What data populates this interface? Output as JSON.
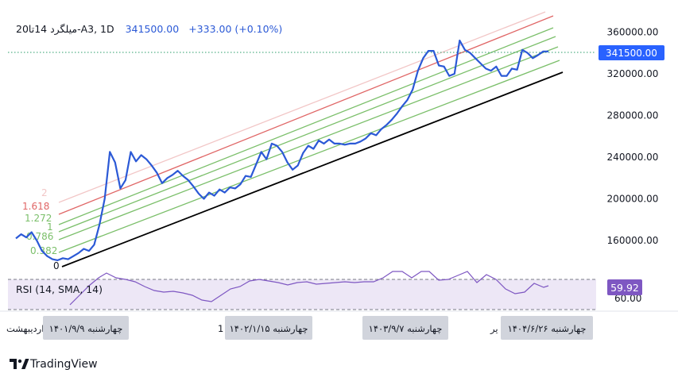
{
  "header": {
    "symbol": "20میلگرد 14تا-A3, 1D",
    "price": "341500.00",
    "change": "+333.00 (+0.10%)"
  },
  "colors": {
    "price_line": "#2b59d6",
    "channel_base": "#000000",
    "fib_green": "#7bbf6a",
    "fib_red": "#e06666",
    "fib_faint": "#f2c6c6",
    "rsi_line": "#7e57c2",
    "rsi_band": "#ede7f6",
    "last_price_bg": "#2962ff",
    "rsi_badge_bg": "#7e57c2",
    "axis_text": "#131722",
    "date_box_bg": "#d1d4dc"
  },
  "fib_levels": [
    "0",
    "0.382",
    "0.786",
    "1",
    "1.272",
    "1.618",
    "2"
  ],
  "rsi": {
    "label": "RSI (14, SMA, 14)",
    "value": "59.92",
    "hidden_tick": "60.00"
  },
  "x_axis": {
    "left_cut": "اردیبهشت",
    "marker_1": "چهارشنبه ۱۴۰۱/۹/۹",
    "stray_1": "1",
    "marker_2": "چهارشنبه ۱۴۰۲/۱/۱۵",
    "marker_3": "چهارشنبه ۱۴۰۳/۹/۷",
    "stray_2": "یر",
    "marker_4": "چهارشنبه ۱۴۰۴/۶/۲۶"
  },
  "brand": {
    "name": "TradingView",
    "logo": "tradingview-logo"
  },
  "chart_data": {
    "type": "line",
    "title": "",
    "ylim": [
      125000,
      375000
    ],
    "y_ticks": [
      160000,
      200000,
      240000,
      280000,
      320000,
      360000
    ],
    "y_tick_labels": [
      "160000.00",
      "200000.00",
      "240000.00",
      "280000.00",
      "320000.00",
      "360000.00"
    ],
    "x_start": "1401-01",
    "x_end": "1404-07",
    "legend": "none",
    "grid": false,
    "series": [
      {
        "points": [
          [
            "1401-01",
            162000
          ],
          [
            "1401-01",
            166000
          ],
          [
            "1401-01",
            163000
          ],
          [
            "1401-02",
            168000
          ],
          [
            "1401-02",
            160000
          ],
          [
            "1401-02",
            150000
          ],
          [
            "1401-02",
            145000
          ],
          [
            "1401-03",
            142000
          ],
          [
            "1401-03",
            141000
          ],
          [
            "1401-03",
            143000
          ],
          [
            "1401-03",
            142000
          ],
          [
            "1401-04",
            145000
          ],
          [
            "1401-04",
            148000
          ],
          [
            "1401-04",
            152000
          ],
          [
            "1401-05",
            150000
          ],
          [
            "1401-05",
            156000
          ],
          [
            "1401-05",
            175000
          ],
          [
            "1401-05",
            200000
          ],
          [
            "1401-06",
            245000
          ],
          [
            "1401-06",
            235000
          ],
          [
            "1401-06",
            210000
          ],
          [
            "1401-06",
            218000
          ],
          [
            "1401-07",
            245000
          ],
          [
            "1401-07",
            236000
          ],
          [
            "1401-07",
            242000
          ],
          [
            "1401-08",
            238000
          ],
          [
            "1401-08",
            232000
          ],
          [
            "1401-08",
            225000
          ],
          [
            "1401-08",
            215000
          ],
          [
            "1401-09",
            220000
          ],
          [
            "1401-09",
            223000
          ],
          [
            "1401-09",
            227000
          ],
          [
            "1401-10",
            222000
          ],
          [
            "1401-10",
            218000
          ],
          [
            "1401-10",
            212000
          ],
          [
            "1401-10",
            205000
          ],
          [
            "1401-11",
            200000
          ],
          [
            "1401-11",
            206000
          ],
          [
            "1401-11",
            203000
          ],
          [
            "1401-11",
            209000
          ],
          [
            "1401-12",
            206000
          ],
          [
            "1401-12",
            211000
          ],
          [
            "1401-12",
            210000
          ],
          [
            "1402-01",
            214000
          ],
          [
            "1402-01",
            222000
          ],
          [
            "1402-01",
            221000
          ],
          [
            "1402-02",
            233000
          ],
          [
            "1402-02",
            245000
          ],
          [
            "1402-02",
            238000
          ],
          [
            "1402-02",
            253000
          ],
          [
            "1402-03",
            251000
          ],
          [
            "1402-03",
            245000
          ],
          [
            "1402-03",
            235000
          ],
          [
            "1402-04",
            228000
          ],
          [
            "1402-04",
            232000
          ],
          [
            "1402-04",
            244000
          ],
          [
            "1402-05",
            251000
          ],
          [
            "1402-05",
            248000
          ],
          [
            "1402-05",
            256000
          ],
          [
            "1402-06",
            253000
          ],
          [
            "1402-06",
            257000
          ],
          [
            "1402-07",
            253000
          ],
          [
            "1402-08",
            253000
          ],
          [
            "1402-09",
            252000
          ],
          [
            "1402-10",
            253000
          ],
          [
            "1402-11",
            253000
          ],
          [
            "1402-12",
            255000
          ],
          [
            "1402-12",
            258000
          ],
          [
            "1403-01",
            263000
          ],
          [
            "1403-01",
            261000
          ],
          [
            "1403-02",
            267000
          ],
          [
            "1403-02",
            271000
          ],
          [
            "1403-03",
            276000
          ],
          [
            "1403-03",
            282000
          ],
          [
            "1403-03",
            289000
          ],
          [
            "1403-04",
            295000
          ],
          [
            "1403-04",
            305000
          ],
          [
            "1403-04",
            323000
          ],
          [
            "1403-05",
            335000
          ],
          [
            "1403-05",
            342000
          ],
          [
            "1403-05",
            342000
          ],
          [
            "1403-06",
            328000
          ],
          [
            "1403-06",
            327000
          ],
          [
            "1403-06",
            318000
          ],
          [
            "1403-07",
            320000
          ],
          [
            "1403-07",
            352000
          ],
          [
            "1403-07",
            343000
          ],
          [
            "1403-08",
            340000
          ],
          [
            "1403-08",
            335000
          ],
          [
            "1403-09",
            330000
          ],
          [
            "1403-09",
            325000
          ],
          [
            "1403-10",
            323000
          ],
          [
            "1403-10",
            327000
          ],
          [
            "1403-10",
            318000
          ],
          [
            "1403-11",
            318000
          ],
          [
            "1403-11",
            325000
          ],
          [
            "1403-11",
            324000
          ],
          [
            "1403-12",
            343000
          ],
          [
            "1404-01",
            340000
          ],
          [
            "1404-01",
            335000
          ],
          [
            "1404-02",
            338000
          ],
          [
            "1404-02",
            341500
          ],
          [
            "1404-03",
            341500
          ]
        ]
      }
    ]
  }
}
